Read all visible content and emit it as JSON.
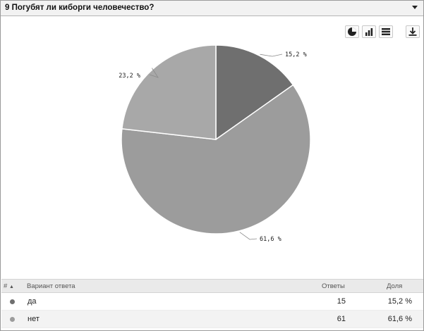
{
  "header": {
    "title": "9 Погубят ли киборги человечество?"
  },
  "colors": {
    "slice_1": "#6f6f6f",
    "slice_2": "#9c9c9c",
    "slice_3": "#a8a8a8"
  },
  "toolbar": {
    "buttons": [
      {
        "icon": "pie-chart-icon"
      },
      {
        "icon": "bar-chart-icon"
      },
      {
        "icon": "table-view-icon"
      },
      {
        "icon": "download-icon"
      }
    ]
  },
  "chart_data": {
    "type": "pie",
    "categories": [
      "да",
      "нет",
      ""
    ],
    "values": [
      15.2,
      61.6,
      23.2
    ],
    "data_labels": [
      "15,2 %",
      "61,6 %",
      "23,2 %"
    ],
    "legend": "none"
  },
  "table": {
    "headers": {
      "index": "#",
      "option": "Вариант ответа",
      "answers": "Ответы",
      "share": "Доля"
    },
    "rows": [
      {
        "label": "да",
        "count": "15",
        "share": "15,2 %"
      },
      {
        "label": "нет",
        "count": "61",
        "share": "61,6 %"
      }
    ]
  }
}
